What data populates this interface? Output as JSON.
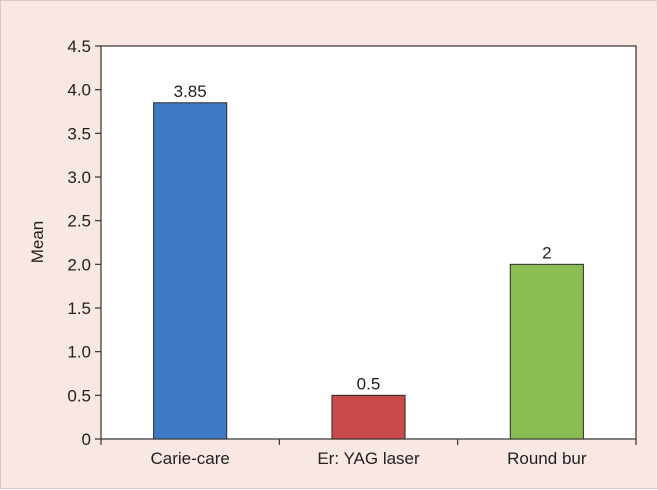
{
  "chart_data": {
    "type": "bar",
    "title": "",
    "xlabel": "",
    "ylabel": "Mean",
    "ylim": [
      0,
      4.5
    ],
    "yticks": [
      "0",
      "0.5",
      "1.0",
      "1.5",
      "2.0",
      "2.5",
      "3.0",
      "3.5",
      "4.0",
      "4.5"
    ],
    "categories": [
      "Carie-care",
      "Er: YAG laser",
      "Round bur"
    ],
    "values": [
      3.85,
      0.5,
      2
    ],
    "value_labels": [
      "3.85",
      "0.5",
      "2"
    ],
    "colors": [
      "#3f7bc4",
      "#c84a4a",
      "#8bbd55"
    ],
    "grid": false,
    "legend": "none"
  }
}
